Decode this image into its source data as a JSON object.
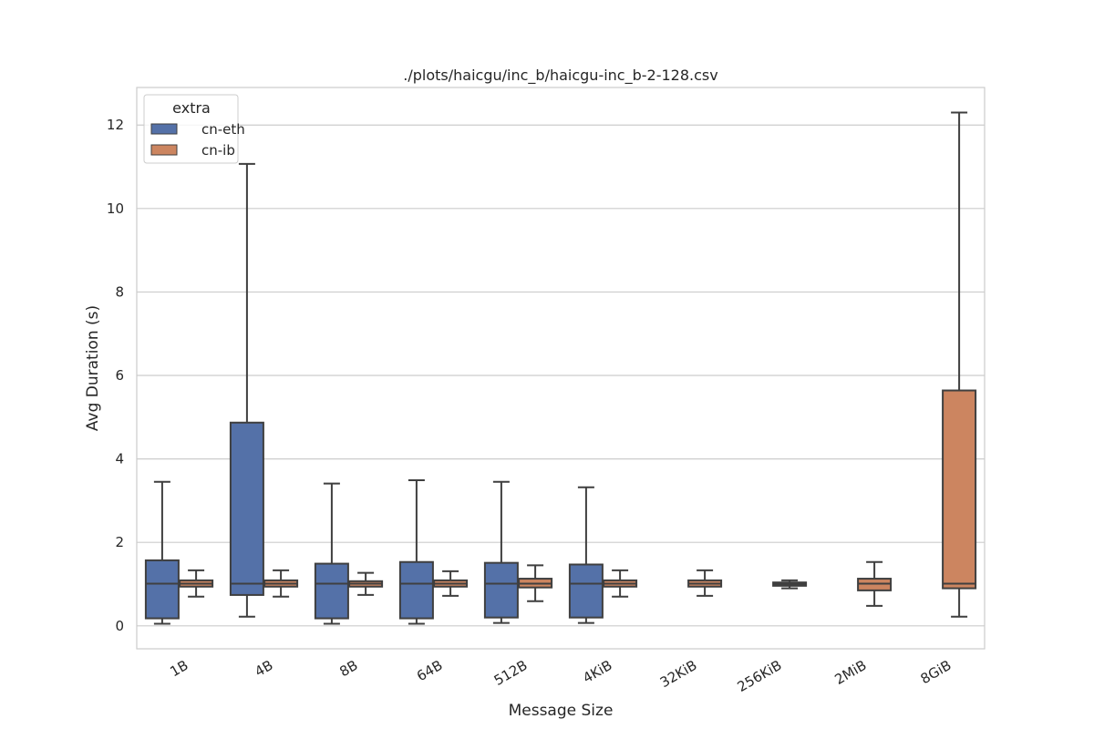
{
  "chart_data": {
    "type": "boxplot",
    "title": "./plots/haicgu/inc_b/haicgu-inc_b-2-128.csv",
    "xlabel": "Message Size",
    "ylabel": "Avg Duration (s)",
    "ylim": [
      -0.55,
      12.9
    ],
    "yticks": [
      0,
      2,
      4,
      6,
      8,
      10,
      12
    ],
    "grid": true,
    "categories": [
      "1B",
      "4B",
      "8B",
      "64B",
      "512B",
      "4KiB",
      "32KiB",
      "256KiB",
      "2MiB",
      "8GiB"
    ],
    "legend": {
      "title": "extra",
      "placement": "top-left"
    },
    "series": [
      {
        "name": "cn-eth",
        "color": "#5471a8",
        "boxes": [
          {
            "category": "1B",
            "whislo": 0.05,
            "q1": 0.18,
            "med": 1.01,
            "q3": 1.57,
            "whishi": 3.45
          },
          {
            "category": "4B",
            "whislo": 0.22,
            "q1": 0.74,
            "med": 1.01,
            "q3": 4.87,
            "whishi": 11.07
          },
          {
            "category": "8B",
            "whislo": 0.05,
            "q1": 0.18,
            "med": 1.01,
            "q3": 1.49,
            "whishi": 3.41
          },
          {
            "category": "64B",
            "whislo": 0.05,
            "q1": 0.18,
            "med": 1.01,
            "q3": 1.53,
            "whishi": 3.49
          },
          {
            "category": "512B",
            "whislo": 0.07,
            "q1": 0.2,
            "med": 1.01,
            "q3": 1.51,
            "whishi": 3.45
          },
          {
            "category": "4KiB",
            "whislo": 0.07,
            "q1": 0.2,
            "med": 1.01,
            "q3": 1.47,
            "whishi": 3.32
          }
        ]
      },
      {
        "name": "cn-ib",
        "color": "#cc8560",
        "boxes": [
          {
            "category": "1B",
            "whislo": 0.7,
            "q1": 0.94,
            "med": 1.01,
            "q3": 1.09,
            "whishi": 1.33
          },
          {
            "category": "4B",
            "whislo": 0.7,
            "q1": 0.94,
            "med": 1.01,
            "q3": 1.09,
            "whishi": 1.33
          },
          {
            "category": "8B",
            "whislo": 0.74,
            "q1": 0.94,
            "med": 1.01,
            "q3": 1.07,
            "whishi": 1.27
          },
          {
            "category": "64B",
            "whislo": 0.72,
            "q1": 0.94,
            "med": 1.01,
            "q3": 1.09,
            "whishi": 1.31
          },
          {
            "category": "512B",
            "whislo": 0.59,
            "q1": 0.92,
            "med": 1.01,
            "q3": 1.13,
            "whishi": 1.45
          },
          {
            "category": "4KiB",
            "whislo": 0.7,
            "q1": 0.94,
            "med": 1.01,
            "q3": 1.09,
            "whishi": 1.33
          },
          {
            "category": "32KiB",
            "whislo": 0.72,
            "q1": 0.94,
            "med": 1.01,
            "q3": 1.09,
            "whishi": 1.33
          },
          {
            "category": "256KiB",
            "whislo": 0.9,
            "q1": 0.96,
            "med": 1.0,
            "q3": 1.04,
            "whishi": 1.09
          },
          {
            "category": "2MiB",
            "whislo": 0.48,
            "q1": 0.85,
            "med": 1.01,
            "q3": 1.13,
            "whishi": 1.53
          },
          {
            "category": "8GiB",
            "whislo": 0.22,
            "q1": 0.9,
            "med": 1.01,
            "q3": 5.64,
            "whishi": 12.3
          }
        ]
      }
    ]
  }
}
